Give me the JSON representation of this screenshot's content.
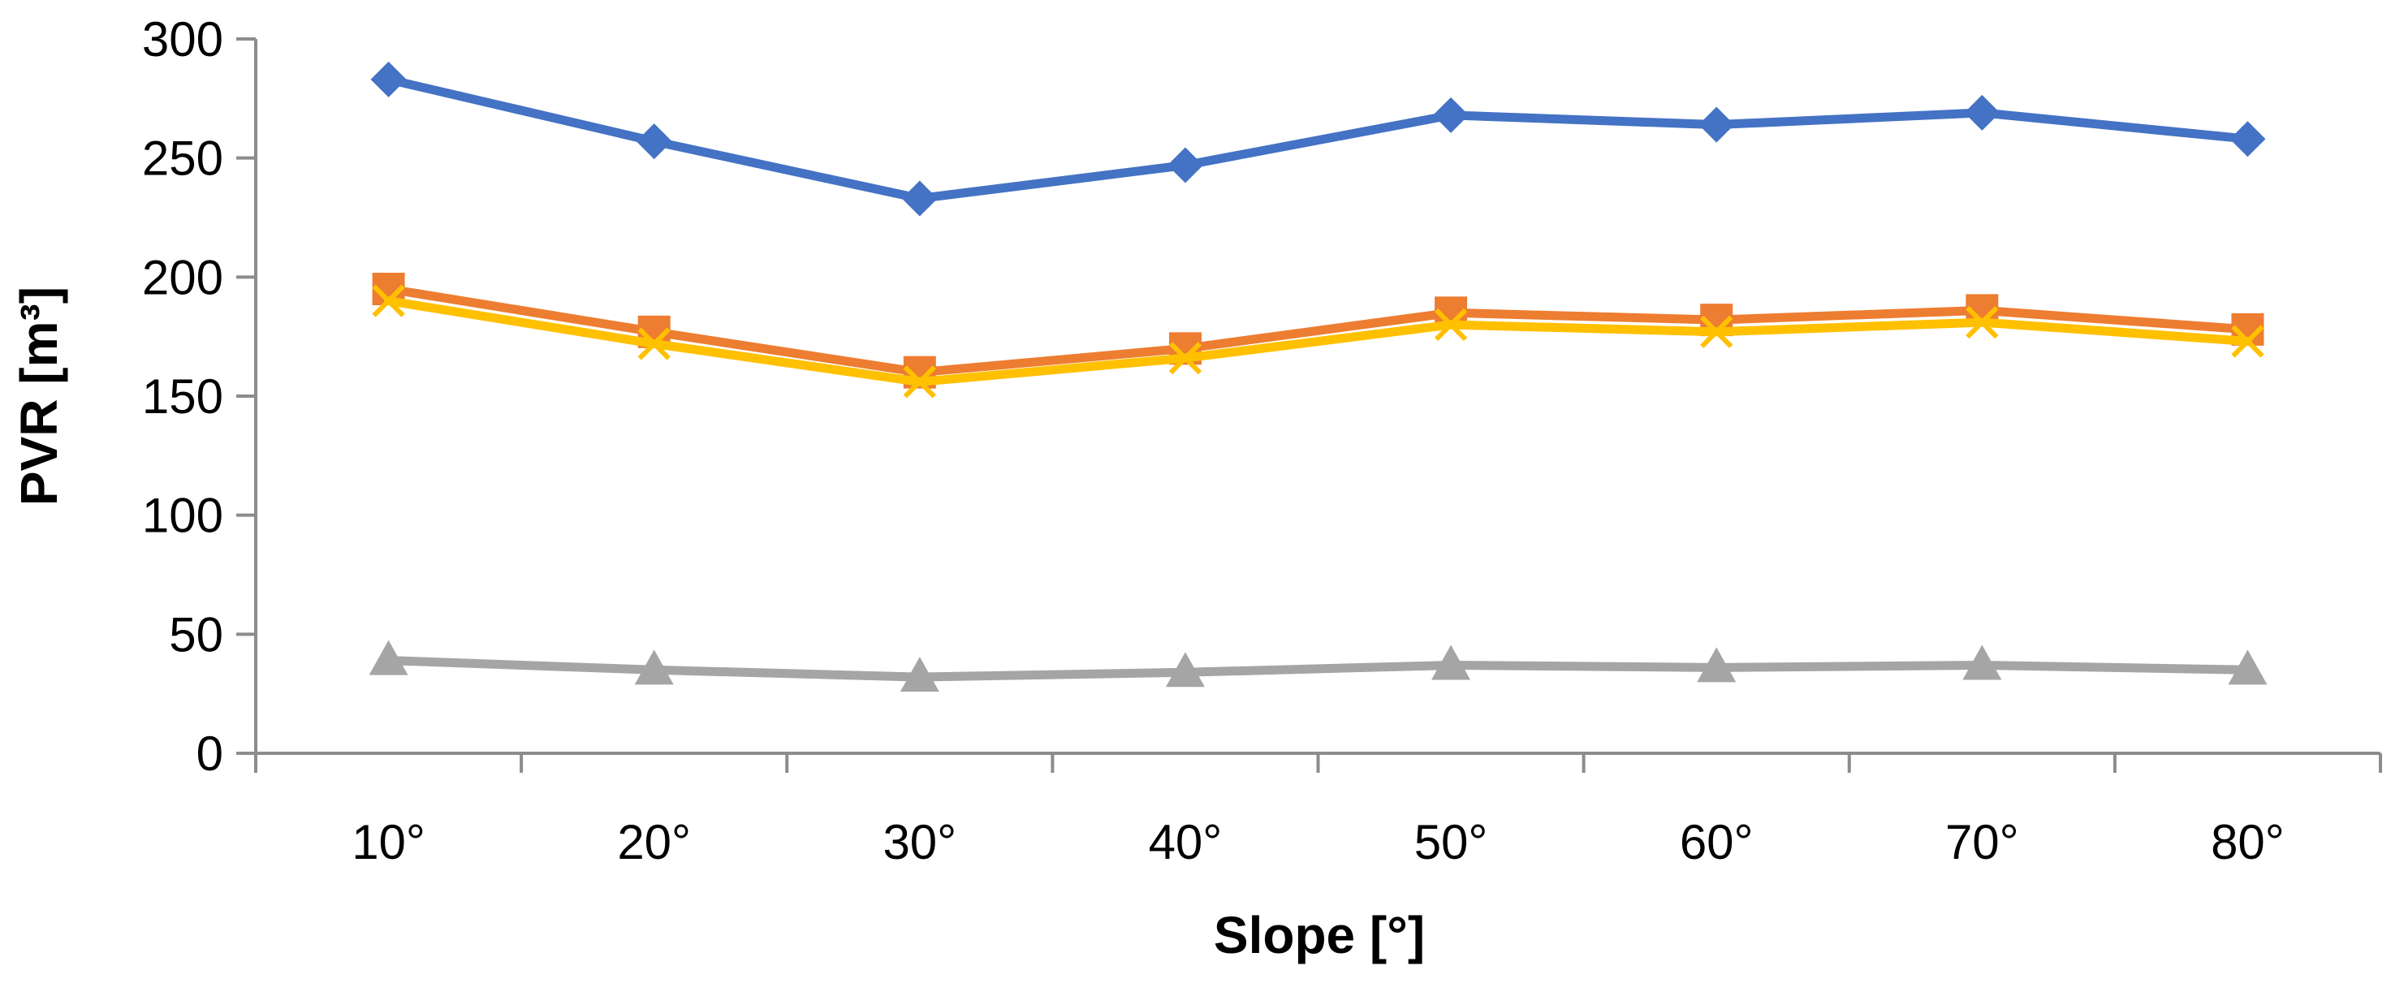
{
  "chart_data": {
    "type": "line",
    "title": "",
    "xlabel": "Slope [°]",
    "ylabel": "PVR [m³]",
    "categories": [
      "10°",
      "20°",
      "30°",
      "40°",
      "50°",
      "60°",
      "70°",
      "80°"
    ],
    "ylim": [
      0,
      300
    ],
    "yticks": [
      "0",
      "50",
      "100",
      "150",
      "200",
      "250",
      "300"
    ],
    "grid": false,
    "legend": "none",
    "series": [
      {
        "name": "blue-diamond",
        "color": "#4472C4",
        "marker": "diamond",
        "values": [
          283,
          257,
          233,
          247,
          268,
          264,
          269,
          258
        ]
      },
      {
        "name": "orange-square",
        "color": "#ED7D31",
        "marker": "square",
        "values": [
          195,
          177,
          160,
          170,
          185,
          182,
          186,
          178
        ]
      },
      {
        "name": "yellow-x",
        "color": "#FFC000",
        "marker": "x",
        "values": [
          190,
          172,
          156,
          166,
          180,
          177,
          181,
          173
        ]
      },
      {
        "name": "gray-triangle",
        "color": "#A5A5A5",
        "marker": "triangle",
        "values": [
          39,
          35,
          32,
          34,
          37,
          36,
          37,
          35
        ]
      }
    ]
  }
}
